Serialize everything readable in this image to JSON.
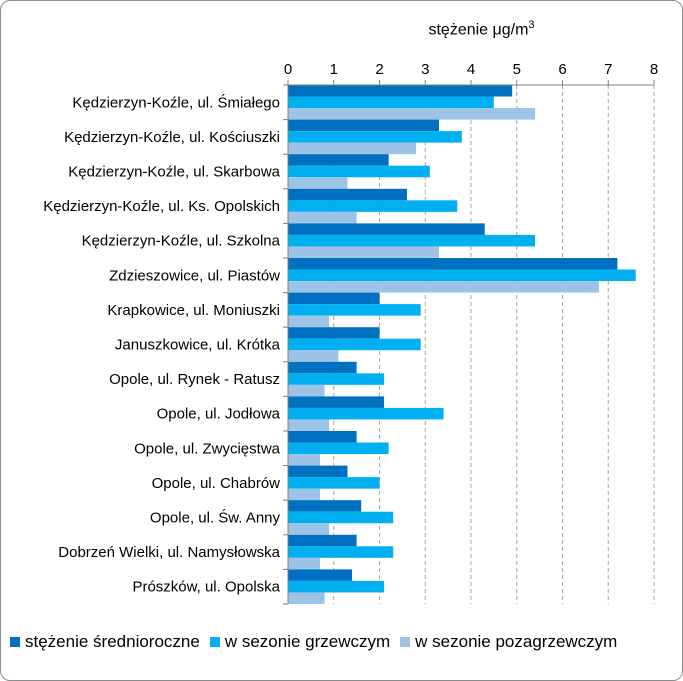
{
  "chart_data": {
    "type": "bar",
    "orientation": "horizontal",
    "axis_label_prefix": "stężenie ",
    "axis_label_unit": "μg/m",
    "axis_label_sup": "3",
    "xlim": [
      0,
      8
    ],
    "ticks": [
      0,
      1,
      2,
      3,
      4,
      5,
      6,
      7,
      8
    ],
    "grid": "vertical-dashed",
    "legend_position": "bottom",
    "categories": [
      "Kędzierzyn-Koźle, ul. Śmiałego",
      "Kędzierzyn-Koźle, ul. Kościuszki",
      "Kędzierzyn-Koźle, ul. Skarbowa",
      "Kędzierzyn-Koźle, ul. Ks. Opolskich",
      "Kędzierzyn-Koźle, ul. Szkolna",
      "Zdzieszowice, ul. Piastów",
      "Krapkowice, ul. Moniuszki",
      "Januszkowice, ul. Krótka",
      "Opole, ul. Rynek - Ratusz",
      "Opole, ul. Jodłowa",
      "Opole, ul. Zwycięstwa",
      "Opole, ul. Chabrów",
      "Opole, ul. Św. Anny",
      "Dobrzeń Wielki, ul. Namysłowska",
      "Prószków, ul. Opolska"
    ],
    "series": [
      {
        "name": "stężenie średnioroczne",
        "color": "#0070c0",
        "values": [
          4.9,
          3.3,
          2.2,
          2.6,
          4.3,
          7.2,
          2.0,
          2.0,
          1.5,
          2.1,
          1.5,
          1.3,
          1.6,
          1.5,
          1.4
        ]
      },
      {
        "name": "w sezonie grzewczym",
        "color": "#00b0f0",
        "values": [
          4.5,
          3.8,
          3.1,
          3.7,
          5.4,
          7.6,
          2.9,
          2.9,
          2.1,
          3.4,
          2.2,
          2.0,
          2.3,
          2.3,
          2.1
        ]
      },
      {
        "name": "w sezonie pozagrzewczym",
        "color": "#9dc3e6",
        "values": [
          5.4,
          2.8,
          1.3,
          1.5,
          3.3,
          6.8,
          0.9,
          1.1,
          0.8,
          0.9,
          0.7,
          0.7,
          0.9,
          0.7,
          0.8
        ]
      }
    ]
  }
}
